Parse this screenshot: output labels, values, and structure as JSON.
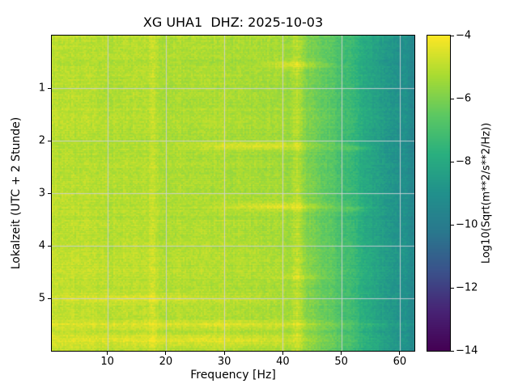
{
  "chart_data": {
    "type": "heatmap",
    "title": "XG UHA1  DHZ: 2025-10-03",
    "xlabel": "Frequency [Hz]",
    "ylabel": "Lokalzeit (UTC + 2 Stunde)",
    "xlim": [
      0.5,
      62.5
    ],
    "ylim": [
      0,
      6
    ],
    "x_ticks": [
      10,
      20,
      30,
      40,
      50,
      60
    ],
    "y_ticks": [
      1,
      2,
      3,
      4,
      5
    ],
    "grid": true,
    "grid_color": "#cbcfd6",
    "colormap": "viridis",
    "colorbar": {
      "label": "Log10(Sqrt(m**2/s**2/Hz))",
      "ticks": [
        -4,
        -6,
        -8,
        -10,
        -12,
        -14
      ],
      "vmin": -14,
      "vmax": -4
    },
    "freq_bins": [
      0,
      5,
      10,
      15,
      20,
      25,
      30,
      35,
      40,
      45,
      50,
      55,
      60
    ],
    "time_bins": [
      0,
      0.5,
      1.0,
      1.5,
      2.0,
      2.5,
      3.0,
      3.5,
      4.0,
      4.5,
      5.0,
      5.5
    ],
    "values_log10": [
      [
        -4.9,
        -5.0,
        -5.1,
        -5.0,
        -5.2,
        -5.1,
        -5.2,
        -5.2,
        -5.3,
        -6.0,
        -6.9,
        -8.1,
        -8.9
      ],
      [
        -5.0,
        -5.1,
        -5.1,
        -5.1,
        -5.2,
        -5.2,
        -5.3,
        -5.3,
        -5.3,
        -6.1,
        -7.0,
        -8.2,
        -9.0
      ],
      [
        -5.0,
        -5.0,
        -5.2,
        -5.1,
        -5.3,
        -5.2,
        -5.3,
        -5.3,
        -5.4,
        -6.1,
        -7.0,
        -8.2,
        -9.0
      ],
      [
        -4.9,
        -5.0,
        -5.1,
        -5.1,
        -5.2,
        -5.2,
        -5.2,
        -5.3,
        -5.3,
        -6.0,
        -6.9,
        -8.1,
        -8.9
      ],
      [
        -5.0,
        -5.1,
        -5.2,
        -5.2,
        -5.3,
        -5.3,
        -5.3,
        -5.4,
        -5.4,
        -6.2,
        -7.1,
        -8.3,
        -9.1
      ],
      [
        -5.0,
        -5.1,
        -5.1,
        -5.1,
        -5.2,
        -5.2,
        -5.3,
        -5.3,
        -5.4,
        -6.1,
        -7.0,
        -8.2,
        -9.0
      ],
      [
        -4.9,
        -5.0,
        -5.1,
        -5.1,
        -5.2,
        -5.2,
        -5.3,
        -5.3,
        -5.3,
        -6.0,
        -7.0,
        -8.1,
        -9.0
      ],
      [
        -5.0,
        -5.0,
        -5.1,
        -5.1,
        -5.2,
        -5.2,
        -5.2,
        -5.3,
        -5.3,
        -6.1,
        -7.0,
        -8.2,
        -9.0
      ],
      [
        -4.9,
        -5.0,
        -5.1,
        -5.0,
        -5.2,
        -5.1,
        -5.2,
        -5.2,
        -5.3,
        -6.0,
        -6.9,
        -8.1,
        -8.9
      ],
      [
        -4.8,
        -4.9,
        -5.0,
        -5.0,
        -5.1,
        -5.1,
        -5.2,
        -5.2,
        -5.2,
        -6.0,
        -6.9,
        -8.0,
        -8.9
      ],
      [
        -4.9,
        -5.0,
        -5.0,
        -5.0,
        -5.1,
        -5.1,
        -5.2,
        -5.2,
        -5.3,
        -6.0,
        -6.9,
        -8.1,
        -9.0
      ],
      [
        -4.8,
        -4.9,
        -5.0,
        -5.0,
        -5.1,
        -5.1,
        -5.1,
        -5.2,
        -5.2,
        -5.9,
        -6.8,
        -8.0,
        -8.9
      ]
    ],
    "features": {
      "vertical_lines": [
        {
          "f": 42.5,
          "width": 0.6,
          "boost": 0.9
        },
        {
          "f": 17.7,
          "width": 0.5,
          "boost": 0.45
        },
        {
          "f": 30.0,
          "width": 0.4,
          "boost": 0.22
        }
      ],
      "bright_spots": [
        {
          "t": 0.55,
          "f": 43,
          "df": 4,
          "dt": 0.05,
          "boost": 0.9
        },
        {
          "t": 2.1,
          "f": 37,
          "df": 9,
          "dt": 0.05,
          "boost": 0.9
        },
        {
          "t": 2.15,
          "f": 52,
          "df": 2,
          "dt": 0.04,
          "boost": 0.7
        },
        {
          "t": 3.25,
          "f": 40,
          "df": 7,
          "dt": 0.05,
          "boost": 0.9
        },
        {
          "t": 3.3,
          "f": 52,
          "df": 2,
          "dt": 0.04,
          "boost": 0.6
        },
        {
          "t": 4.6,
          "f": 43,
          "df": 3,
          "dt": 0.04,
          "boost": 0.6
        },
        {
          "t": 5.0,
          "f": 15,
          "df": 12,
          "dt": 0.04,
          "boost": 0.5
        },
        {
          "t": 5.5,
          "f": 30,
          "df": 25,
          "dt": 0.05,
          "boost": 0.6
        },
        {
          "t": 5.8,
          "f": 25,
          "df": 20,
          "dt": 0.06,
          "boost": 0.7
        }
      ],
      "noise_amp": 0.55,
      "row_streak_amp": 0.3,
      "col_streak_amp": 0.2
    }
  }
}
